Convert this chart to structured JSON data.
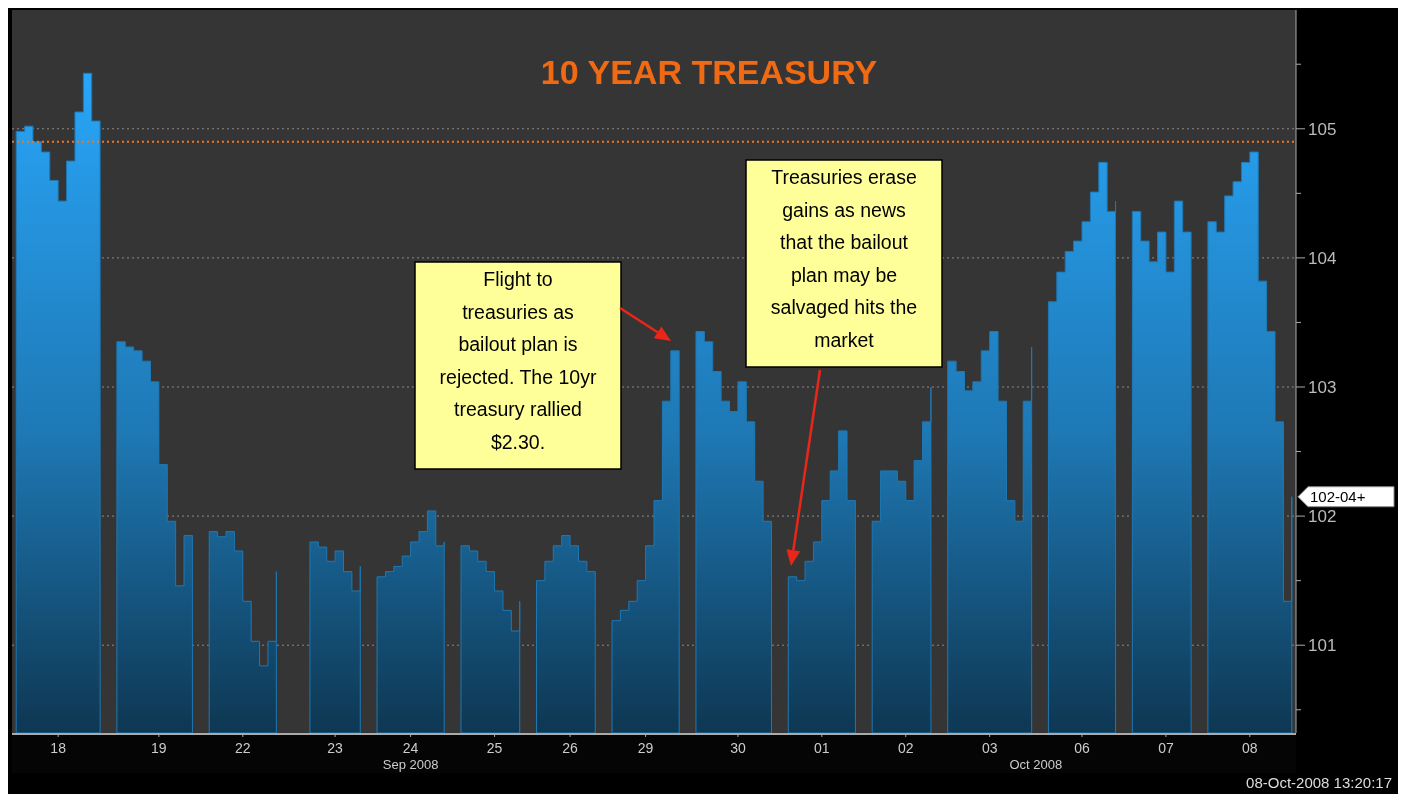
{
  "chart_data": {
    "type": "area",
    "title": "10 YEAR TREASURY",
    "categories": [
      null,
      null,
      null,
      null,
      null,
      "18",
      null,
      null,
      null,
      null,
      null,
      null,
      null,
      null,
      null,
      null,
      null,
      "19",
      null,
      null,
      null,
      null,
      null,
      null,
      null,
      null,
      null,
      "22",
      null,
      null,
      null,
      null,
      null,
      null,
      null,
      null,
      null,
      null,
      "23",
      null,
      null,
      null,
      null,
      null,
      null,
      null,
      null,
      "24",
      null,
      null,
      null,
      null,
      null,
      null,
      null,
      null,
      null,
      "25",
      null,
      null,
      null,
      null,
      null,
      null,
      null,
      null,
      "26",
      null,
      null,
      null,
      null,
      null,
      null,
      null,
      null,
      "29",
      null,
      null,
      null,
      null,
      null,
      null,
      null,
      null,
      null,
      null,
      "30",
      null,
      null,
      null,
      null,
      null,
      null,
      null,
      null,
      null,
      "01",
      null,
      null,
      null,
      null,
      null,
      null,
      null,
      null,
      null,
      "02",
      null,
      null,
      null,
      null,
      null,
      null,
      null,
      null,
      null,
      "03",
      null,
      null,
      null,
      null,
      null,
      null,
      null,
      null,
      null,
      null,
      "06",
      null,
      null,
      null,
      null,
      null,
      null,
      null,
      null,
      null,
      "07",
      null,
      null,
      null,
      null,
      null,
      null,
      null,
      null,
      null,
      "08",
      null,
      null,
      null,
      null,
      null
    ],
    "ylim": [
      100.32,
      105.92
    ],
    "yticks": [
      {
        "value": 100.5,
        "label": null
      },
      101,
      {
        "value": 101.5,
        "label": null
      },
      102,
      {
        "value": 102.5,
        "label": null
      },
      103,
      {
        "value": 103.5,
        "label": null
      },
      104,
      {
        "value": 104.5,
        "label": null
      },
      105,
      {
        "value": 105.5,
        "label": null
      }
    ],
    "grid": "y",
    "series": [
      {
        "color": "#1e78b4",
        "values": [
          104.98,
          105.02,
          104.9,
          104.82,
          104.6,
          104.44,
          104.75,
          105.13,
          105.43,
          105.06,
          103.93,
          null,
          103.35,
          103.31,
          103.28,
          103.2,
          103.04,
          102.4,
          101.96,
          101.46,
          101.85,
          101.42,
          null,
          101.88,
          101.84,
          101.88,
          101.73,
          101.34,
          101.03,
          100.84,
          101.03,
          101.57,
          null,
          null,
          null,
          101.8,
          101.76,
          101.65,
          101.73,
          101.57,
          101.42,
          101.61,
          null,
          101.53,
          101.57,
          101.61,
          101.69,
          101.8,
          101.88,
          102.04,
          101.77,
          101.8,
          null,
          101.77,
          101.73,
          101.65,
          101.57,
          101.42,
          101.27,
          101.11,
          101.34,
          null,
          101.5,
          101.65,
          101.77,
          101.85,
          101.77,
          101.65,
          101.57,
          101.34,
          null,
          101.19,
          101.27,
          101.34,
          101.5,
          101.77,
          102.12,
          102.89,
          103.28,
          102.89,
          null,
          103.43,
          103.35,
          103.12,
          102.89,
          102.81,
          103.04,
          102.73,
          102.27,
          101.96,
          101.42,
          null,
          101.53,
          101.5,
          101.65,
          101.8,
          102.12,
          102.35,
          102.66,
          102.12,
          101.65,
          null,
          101.96,
          102.35,
          102.35,
          102.27,
          102.12,
          102.43,
          102.73,
          103.0,
          null,
          103.2,
          103.12,
          102.97,
          103.04,
          103.28,
          103.43,
          102.89,
          102.12,
          101.96,
          102.89,
          103.31,
          null,
          103.66,
          103.89,
          104.05,
          104.13,
          104.28,
          104.51,
          104.74,
          104.36,
          104.44,
          null,
          104.36,
          104.13,
          103.97,
          104.2,
          103.89,
          104.44,
          104.2,
          104.05,
          null,
          104.28,
          104.2,
          104.48,
          104.59,
          104.74,
          104.82,
          103.82,
          103.43,
          102.73,
          101.34,
          102.15
        ]
      }
    ],
    "ref_lines": [
      {
        "axis": "y",
        "value": 104.9,
        "color": "#f07820",
        "line_style": "dotted"
      }
    ],
    "annotations": [
      "Flight to treasuries as bailout plan is rejected. The 10yr treasury rallied $2.30.",
      "Treasuries erase gains as news that the bailout plan may be salvaged hits the market",
      "Sep 2008",
      "Oct 2008",
      "08-Oct-2008 13:20:17",
      "102-04+"
    ]
  }
}
